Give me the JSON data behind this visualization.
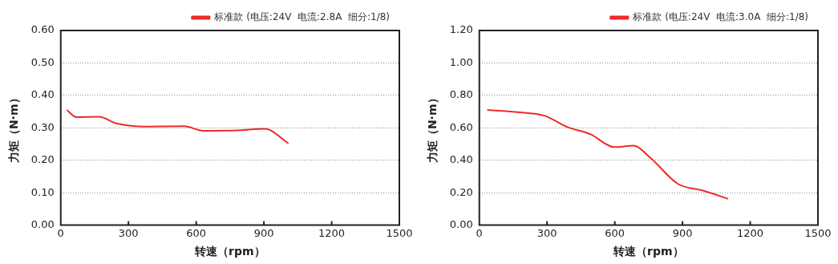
{
  "chart_data": [
    {
      "type": "line",
      "xlabel": "转速（rpm）",
      "ylabel": "力矩（N·m）",
      "xlim": [
        0,
        1500
      ],
      "xticks": [
        0,
        300,
        600,
        900,
        1200,
        1500
      ],
      "ylim": [
        0,
        0.6
      ],
      "yticks": [
        {
          "value": 0,
          "label": "0.00"
        },
        {
          "value": 0.1,
          "label": "0.10"
        },
        {
          "value": 0.2,
          "label": "0.20"
        },
        {
          "value": 0.3,
          "label": "0.30"
        },
        {
          "value": 0.4,
          "label": "0.40"
        },
        {
          "value": 0.5,
          "label": "0.50"
        },
        {
          "value": 0.6,
          "label": "0.60"
        }
      ],
      "grid": "y",
      "legend": "top right",
      "marker": "none",
      "line_style": "solid",
      "series": [
        {
          "name": "标准款 (电压:24V  电流:2.8A  细分:1/8)",
          "color": "#ee2a2a",
          "x": [
            27,
            70,
            169,
            250,
            373,
            546,
            632,
            780,
            904,
            1009
          ],
          "values": [
            0.355,
            0.333,
            0.334,
            0.313,
            0.304,
            0.305,
            0.291,
            0.292,
            0.297,
            0.252
          ]
        }
      ]
    },
    {
      "type": "line",
      "xlabel": "转速（rpm）",
      "ylabel": "力矩（N·m）",
      "xlim": [
        0,
        1500
      ],
      "xticks": [
        0,
        300,
        600,
        900,
        1200,
        1500
      ],
      "ylim": [
        0,
        1.2
      ],
      "yticks": [
        {
          "value": 0,
          "label": "0.00"
        },
        {
          "value": 0.2,
          "label": "0.20"
        },
        {
          "value": 0.4,
          "label": "0.40"
        },
        {
          "value": 0.6,
          "label": "0.60"
        },
        {
          "value": 0.8,
          "label": "0.80"
        },
        {
          "value": 1,
          "label": "1.00"
        },
        {
          "value": 1.2,
          "label": "1.20"
        }
      ],
      "grid": "y",
      "legend": "top right",
      "marker": "none",
      "line_style": "solid",
      "series": [
        {
          "name": "标准款 (电压:24V  电流:3.0A  细分:1/8)",
          "color": "#ee2a2a",
          "x": [
            35,
            189,
            288,
            388,
            493,
            598,
            683,
            757,
            880,
            991,
            1102
          ],
          "values": [
            0.71,
            0.694,
            0.675,
            0.606,
            0.56,
            0.481,
            0.49,
            0.416,
            0.254,
            0.213,
            0.162
          ]
        }
      ]
    }
  ]
}
